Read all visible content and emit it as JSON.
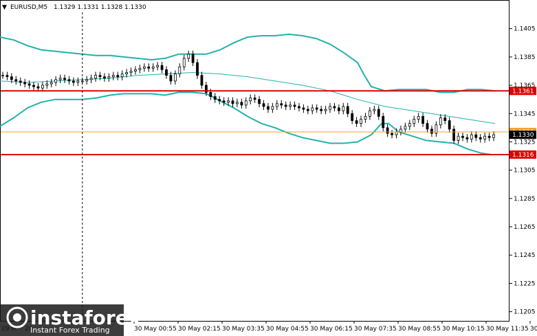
{
  "header": {
    "symbol": "EURUSD,M5",
    "ohlc": "1.1329 1.1331 1.1328 1.1330"
  },
  "chart_data": {
    "type": "candlestick",
    "y_ticks": [
      "1.1405",
      "1.1385",
      "1.1365",
      "1.1345",
      "1.1325",
      "1.1305",
      "1.1285",
      "1.1265",
      "1.1245",
      "1.1225",
      "1.1205"
    ],
    "ylim": [
      1.11985,
      1.14165
    ],
    "x_ticks": [
      "30 May 00:55",
      "30 May 02:15",
      "30 May 03:35",
      "30 May 04:55",
      "30 May 06:15",
      "30 May 07:35",
      "30 May 08:55",
      "30 May 10:15",
      "30 May 11:35",
      "30 May 12:55"
    ],
    "x_ticks_partial": [
      "29 M",
      "20"
    ],
    "levels": [
      {
        "value": 1.1361,
        "label": "1.1361",
        "color": "#e00000"
      },
      {
        "value": 1.1316,
        "label": "1.1316",
        "color": "#e00000"
      },
      {
        "value": 1.1332,
        "label": "1.1332",
        "color": "#f0a030"
      },
      {
        "value": 1.133,
        "label": "1.1330",
        "color": "#000000"
      }
    ],
    "close_path": [
      1.1372,
      1.1371,
      1.1369,
      1.1368,
      1.1367,
      1.1366,
      1.1365,
      1.1364,
      1.1363,
      1.1365,
      1.1366,
      1.1367,
      1.1369,
      1.137,
      1.1369,
      1.1368,
      1.1367,
      1.1368,
      1.1368,
      1.1369,
      1.137,
      1.1372,
      1.1371,
      1.137,
      1.1371,
      1.1372,
      1.1371,
      1.1373,
      1.1374,
      1.1375,
      1.1376,
      1.1377,
      1.1378,
      1.1377,
      1.1378,
      1.1379,
      1.1376,
      1.1372,
      1.1368,
      1.1373,
      1.1378,
      1.1384,
      1.1387,
      1.1381,
      1.1372,
      1.1365,
      1.136,
      1.1357,
      1.1355,
      1.1354,
      1.1353,
      1.1354,
      1.1352,
      1.1353,
      1.1351,
      1.1354,
      1.1356,
      1.1355,
      1.1352,
      1.135,
      1.1348,
      1.135,
      1.1352,
      1.1351,
      1.135,
      1.1351,
      1.135,
      1.1349,
      1.1348,
      1.1347,
      1.1349,
      1.1348,
      1.1347,
      1.1348,
      1.135,
      1.1349,
      1.1347,
      1.135,
      1.1345,
      1.134,
      1.1338,
      1.1341,
      1.1343,
      1.1347,
      1.1348,
      1.1343,
      1.1335,
      1.1331,
      1.133,
      1.1332,
      1.1334,
      1.1336,
      1.1338,
      1.1341,
      1.1343,
      1.1338,
      1.1334,
      1.1331,
      1.1337,
      1.1342,
      1.134,
      1.1334,
      1.1326,
      1.1329,
      1.1328,
      1.1327,
      1.133,
      1.1328,
      1.1327,
      1.1329,
      1.1328,
      1.133
    ],
    "bb_upper": [
      [
        0,
        1.1399
      ],
      [
        20,
        1.1397
      ],
      [
        40,
        1.1393
      ],
      [
        60,
        1.139
      ],
      [
        80,
        1.1389
      ],
      [
        100,
        1.1388
      ],
      [
        120,
        1.1387
      ],
      [
        140,
        1.1386
      ],
      [
        160,
        1.1386
      ],
      [
        180,
        1.1385
      ],
      [
        200,
        1.1384
      ],
      [
        220,
        1.1383
      ],
      [
        240,
        1.1384
      ],
      [
        260,
        1.1387
      ],
      [
        280,
        1.1387
      ],
      [
        300,
        1.1387
      ],
      [
        320,
        1.139
      ],
      [
        340,
        1.1395
      ],
      [
        360,
        1.1399
      ],
      [
        380,
        1.14
      ],
      [
        400,
        1.14
      ],
      [
        420,
        1.1401
      ],
      [
        440,
        1.14
      ],
      [
        460,
        1.1398
      ],
      [
        480,
        1.1394
      ],
      [
        500,
        1.1388
      ],
      [
        520,
        1.1381
      ],
      [
        530,
        1.1372
      ],
      [
        540,
        1.1364
      ],
      [
        560,
        1.1361
      ],
      [
        580,
        1.1362
      ],
      [
        600,
        1.1362
      ],
      [
        620,
        1.1362
      ],
      [
        640,
        1.136
      ],
      [
        660,
        1.136
      ],
      [
        680,
        1.1362
      ],
      [
        700,
        1.1362
      ],
      [
        720,
        1.1361
      ]
    ],
    "bb_middle": [
      [
        0,
        1.1368
      ],
      [
        40,
        1.1367
      ],
      [
        80,
        1.1368
      ],
      [
        120,
        1.1369
      ],
      [
        160,
        1.137
      ],
      [
        200,
        1.1372
      ],
      [
        240,
        1.1373
      ],
      [
        280,
        1.1374
      ],
      [
        320,
        1.1373
      ],
      [
        360,
        1.1371
      ],
      [
        400,
        1.1368
      ],
      [
        440,
        1.1365
      ],
      [
        480,
        1.1361
      ],
      [
        520,
        1.1355
      ],
      [
        560,
        1.135
      ],
      [
        600,
        1.1347
      ],
      [
        640,
        1.1344
      ],
      [
        680,
        1.1341
      ],
      [
        720,
        1.1338
      ]
    ],
    "bb_lower": [
      [
        0,
        1.1336
      ],
      [
        20,
        1.1342
      ],
      [
        40,
        1.1349
      ],
      [
        60,
        1.1353
      ],
      [
        80,
        1.1355
      ],
      [
        100,
        1.1355
      ],
      [
        120,
        1.1355
      ],
      [
        140,
        1.1356
      ],
      [
        160,
        1.1358
      ],
      [
        180,
        1.1359
      ],
      [
        200,
        1.1359
      ],
      [
        220,
        1.1359
      ],
      [
        240,
        1.1358
      ],
      [
        260,
        1.136
      ],
      [
        280,
        1.136
      ],
      [
        300,
        1.1359
      ],
      [
        320,
        1.1354
      ],
      [
        340,
        1.1349
      ],
      [
        360,
        1.1343
      ],
      [
        380,
        1.1338
      ],
      [
        400,
        1.1335
      ],
      [
        420,
        1.1331
      ],
      [
        440,
        1.1328
      ],
      [
        460,
        1.1326
      ],
      [
        480,
        1.1324
      ],
      [
        500,
        1.1324
      ],
      [
        520,
        1.1325
      ],
      [
        540,
        1.133
      ],
      [
        555,
        1.1338
      ],
      [
        565,
        1.1338
      ],
      [
        580,
        1.1332
      ],
      [
        600,
        1.1329
      ],
      [
        620,
        1.1326
      ],
      [
        640,
        1.1325
      ],
      [
        660,
        1.1324
      ],
      [
        680,
        1.132
      ],
      [
        700,
        1.1317
      ],
      [
        715,
        1.1316
      ]
    ],
    "grid": false,
    "crosshair_x_index": 18
  },
  "watermark": {
    "brand": "instaforex",
    "tagline": "Instant Forex Trading"
  },
  "colors": {
    "background": "#ffffff",
    "candle": "#000000",
    "bollinger": "#20b2aa",
    "level_red": "#e00000",
    "level_orange": "#f0a030"
  }
}
